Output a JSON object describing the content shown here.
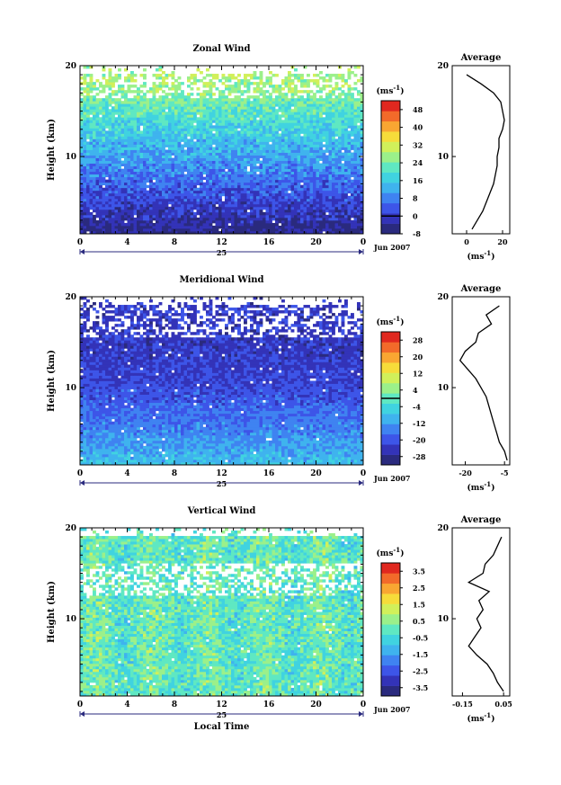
{
  "chart_data": [
    {
      "type": "heatmap",
      "title": "Zonal Wind",
      "ylabel": "Height (km)",
      "xlabel": "",
      "xlim": [
        0,
        24
      ],
      "ylim": [
        1.5,
        20
      ],
      "xticks": [
        "0",
        "4",
        "8",
        "12",
        "16",
        "20",
        "0"
      ],
      "yticks": [
        "10",
        "20"
      ],
      "date_marker": "25",
      "date_label": "Jun 2007",
      "colorbar": {
        "unit": "(ms",
        "unit_exp": "-1",
        "unit_close": ")",
        "ticks": [
          "48",
          "40",
          "32",
          "24",
          "16",
          "8",
          "0",
          "-8"
        ],
        "min": -8,
        "max": 52,
        "zero_line": 0
      },
      "field": {
        "regime": "zonal",
        "low": -6,
        "high": 28,
        "gap_band": [
          16.5,
          19
        ]
      },
      "average": {
        "title": "Average",
        "unit": "(ms",
        "unit_exp": "-1",
        "unit_close": ")",
        "xticks": [
          "0",
          "20"
        ],
        "xlim": [
          -8,
          24
        ],
        "yticks": [
          "10",
          "20"
        ],
        "heights": [
          2,
          3,
          4,
          5,
          6,
          7,
          8,
          9,
          10,
          11,
          12,
          13,
          14,
          15,
          16,
          17,
          18,
          19
        ],
        "values": [
          3,
          6,
          9,
          11,
          13,
          15,
          16,
          17,
          17,
          18,
          18,
          20,
          21,
          20,
          19,
          15,
          8,
          0
        ]
      }
    },
    {
      "type": "heatmap",
      "title": "Meridional Wind",
      "ylabel": "Height (km)",
      "xlabel": "",
      "xlim": [
        0,
        24
      ],
      "ylim": [
        1.5,
        20
      ],
      "xticks": [
        "0",
        "4",
        "8",
        "12",
        "16",
        "20",
        "0"
      ],
      "yticks": [
        "10",
        "20"
      ],
      "date_marker": "25",
      "date_label": "Jun 2007",
      "colorbar": {
        "unit": "(ms",
        "unit_exp": "-1",
        "unit_close": ")",
        "ticks": [
          "28",
          "20",
          "12",
          "4",
          "-4",
          "-12",
          "-20",
          "-28"
        ],
        "min": -32,
        "max": 32,
        "zero_line": 0
      },
      "field": {
        "regime": "meridional",
        "low": -26,
        "high": 2,
        "gap_band": [
          15.5,
          19
        ]
      },
      "average": {
        "title": "Average",
        "unit": "(ms",
        "unit_exp": "-1",
        "unit_close": ")",
        "xticks": [
          "-20",
          "-5"
        ],
        "xlim": [
          -25,
          -3
        ],
        "yticks": [
          "10",
          "20"
        ],
        "heights": [
          2,
          3,
          4,
          5,
          6,
          7,
          8,
          9,
          10,
          11,
          12,
          13,
          14,
          15,
          16,
          17,
          18,
          19
        ],
        "values": [
          -4,
          -5,
          -7,
          -8,
          -9,
          -10,
          -11,
          -12,
          -14,
          -16,
          -19,
          -22,
          -20,
          -16,
          -15,
          -10,
          -12,
          -7
        ]
      }
    },
    {
      "type": "heatmap",
      "title": "Vertical Wind",
      "ylabel": "Height (km)",
      "xlabel": "Local Time",
      "xlim": [
        0,
        24
      ],
      "ylim": [
        1.5,
        20
      ],
      "xticks": [
        "0",
        "4",
        "8",
        "12",
        "16",
        "20",
        "0"
      ],
      "yticks": [
        "10",
        "20"
      ],
      "date_marker": "25",
      "date_label": "Jun 2007",
      "colorbar": {
        "unit": "(ms",
        "unit_exp": "-1",
        "unit_close": ")",
        "ticks": [
          "3.5",
          "2.5",
          "1.5",
          "0.5",
          "-0.5",
          "-1.5",
          "-2.5",
          "-3.5"
        ],
        "min": -4,
        "max": 4,
        "zero_line": null
      },
      "field": {
        "regime": "vertical",
        "low": -0.8,
        "high": 0.7,
        "gap_band": [
          12.5,
          16
        ]
      },
      "average": {
        "title": "Average",
        "unit": "(ms",
        "unit_exp": "-1",
        "unit_close": ")",
        "xticks": [
          "-0.15",
          "0.05"
        ],
        "xlim": [
          -0.2,
          0.08
        ],
        "yticks": [
          "10",
          "20"
        ],
        "heights": [
          2,
          3,
          4,
          5,
          6,
          7,
          8,
          9,
          10,
          11,
          12,
          13,
          14,
          15,
          16,
          17,
          18,
          19
        ],
        "values": [
          0.05,
          0.02,
          0.0,
          -0.03,
          -0.08,
          -0.12,
          -0.09,
          -0.06,
          -0.08,
          -0.05,
          -0.07,
          -0.02,
          -0.12,
          -0.05,
          -0.04,
          0.0,
          0.02,
          0.04
        ]
      }
    }
  ]
}
